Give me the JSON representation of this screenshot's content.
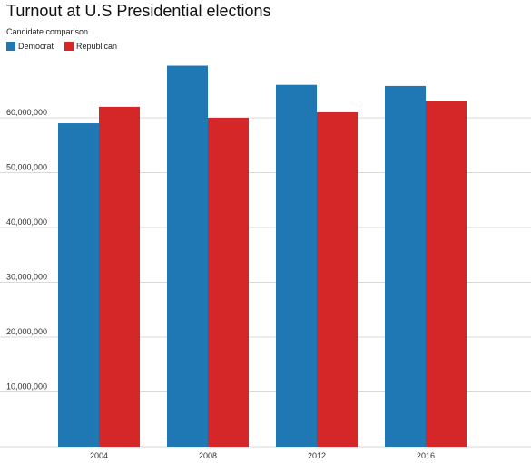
{
  "chart_data": {
    "type": "bar",
    "title": "Turnout at U.S Presidential elections",
    "subtitle": "Candidate comparison",
    "xlabel": "",
    "ylabel": "",
    "categories": [
      "2004",
      "2008",
      "2012",
      "2016"
    ],
    "series": [
      {
        "name": "Democrat",
        "color": "#1f77b4",
        "values": [
          59000000,
          69500000,
          66000000,
          65800000
        ]
      },
      {
        "name": "Republican",
        "color": "#d62728",
        "values": [
          62000000,
          60000000,
          61000000,
          63000000
        ]
      }
    ],
    "yticks": [
      {
        "value": 10000000,
        "label": "10,000,000"
      },
      {
        "value": 20000000,
        "label": "20,000,000"
      },
      {
        "value": 30000000,
        "label": "30,000,000"
      },
      {
        "value": 40000000,
        "label": "40,000,000"
      },
      {
        "value": 50000000,
        "label": "50,000,000"
      },
      {
        "value": 60000000,
        "label": "60,000,000"
      }
    ],
    "ylim": [
      0,
      70000000
    ],
    "grid": true,
    "legend_position": "top-left"
  }
}
